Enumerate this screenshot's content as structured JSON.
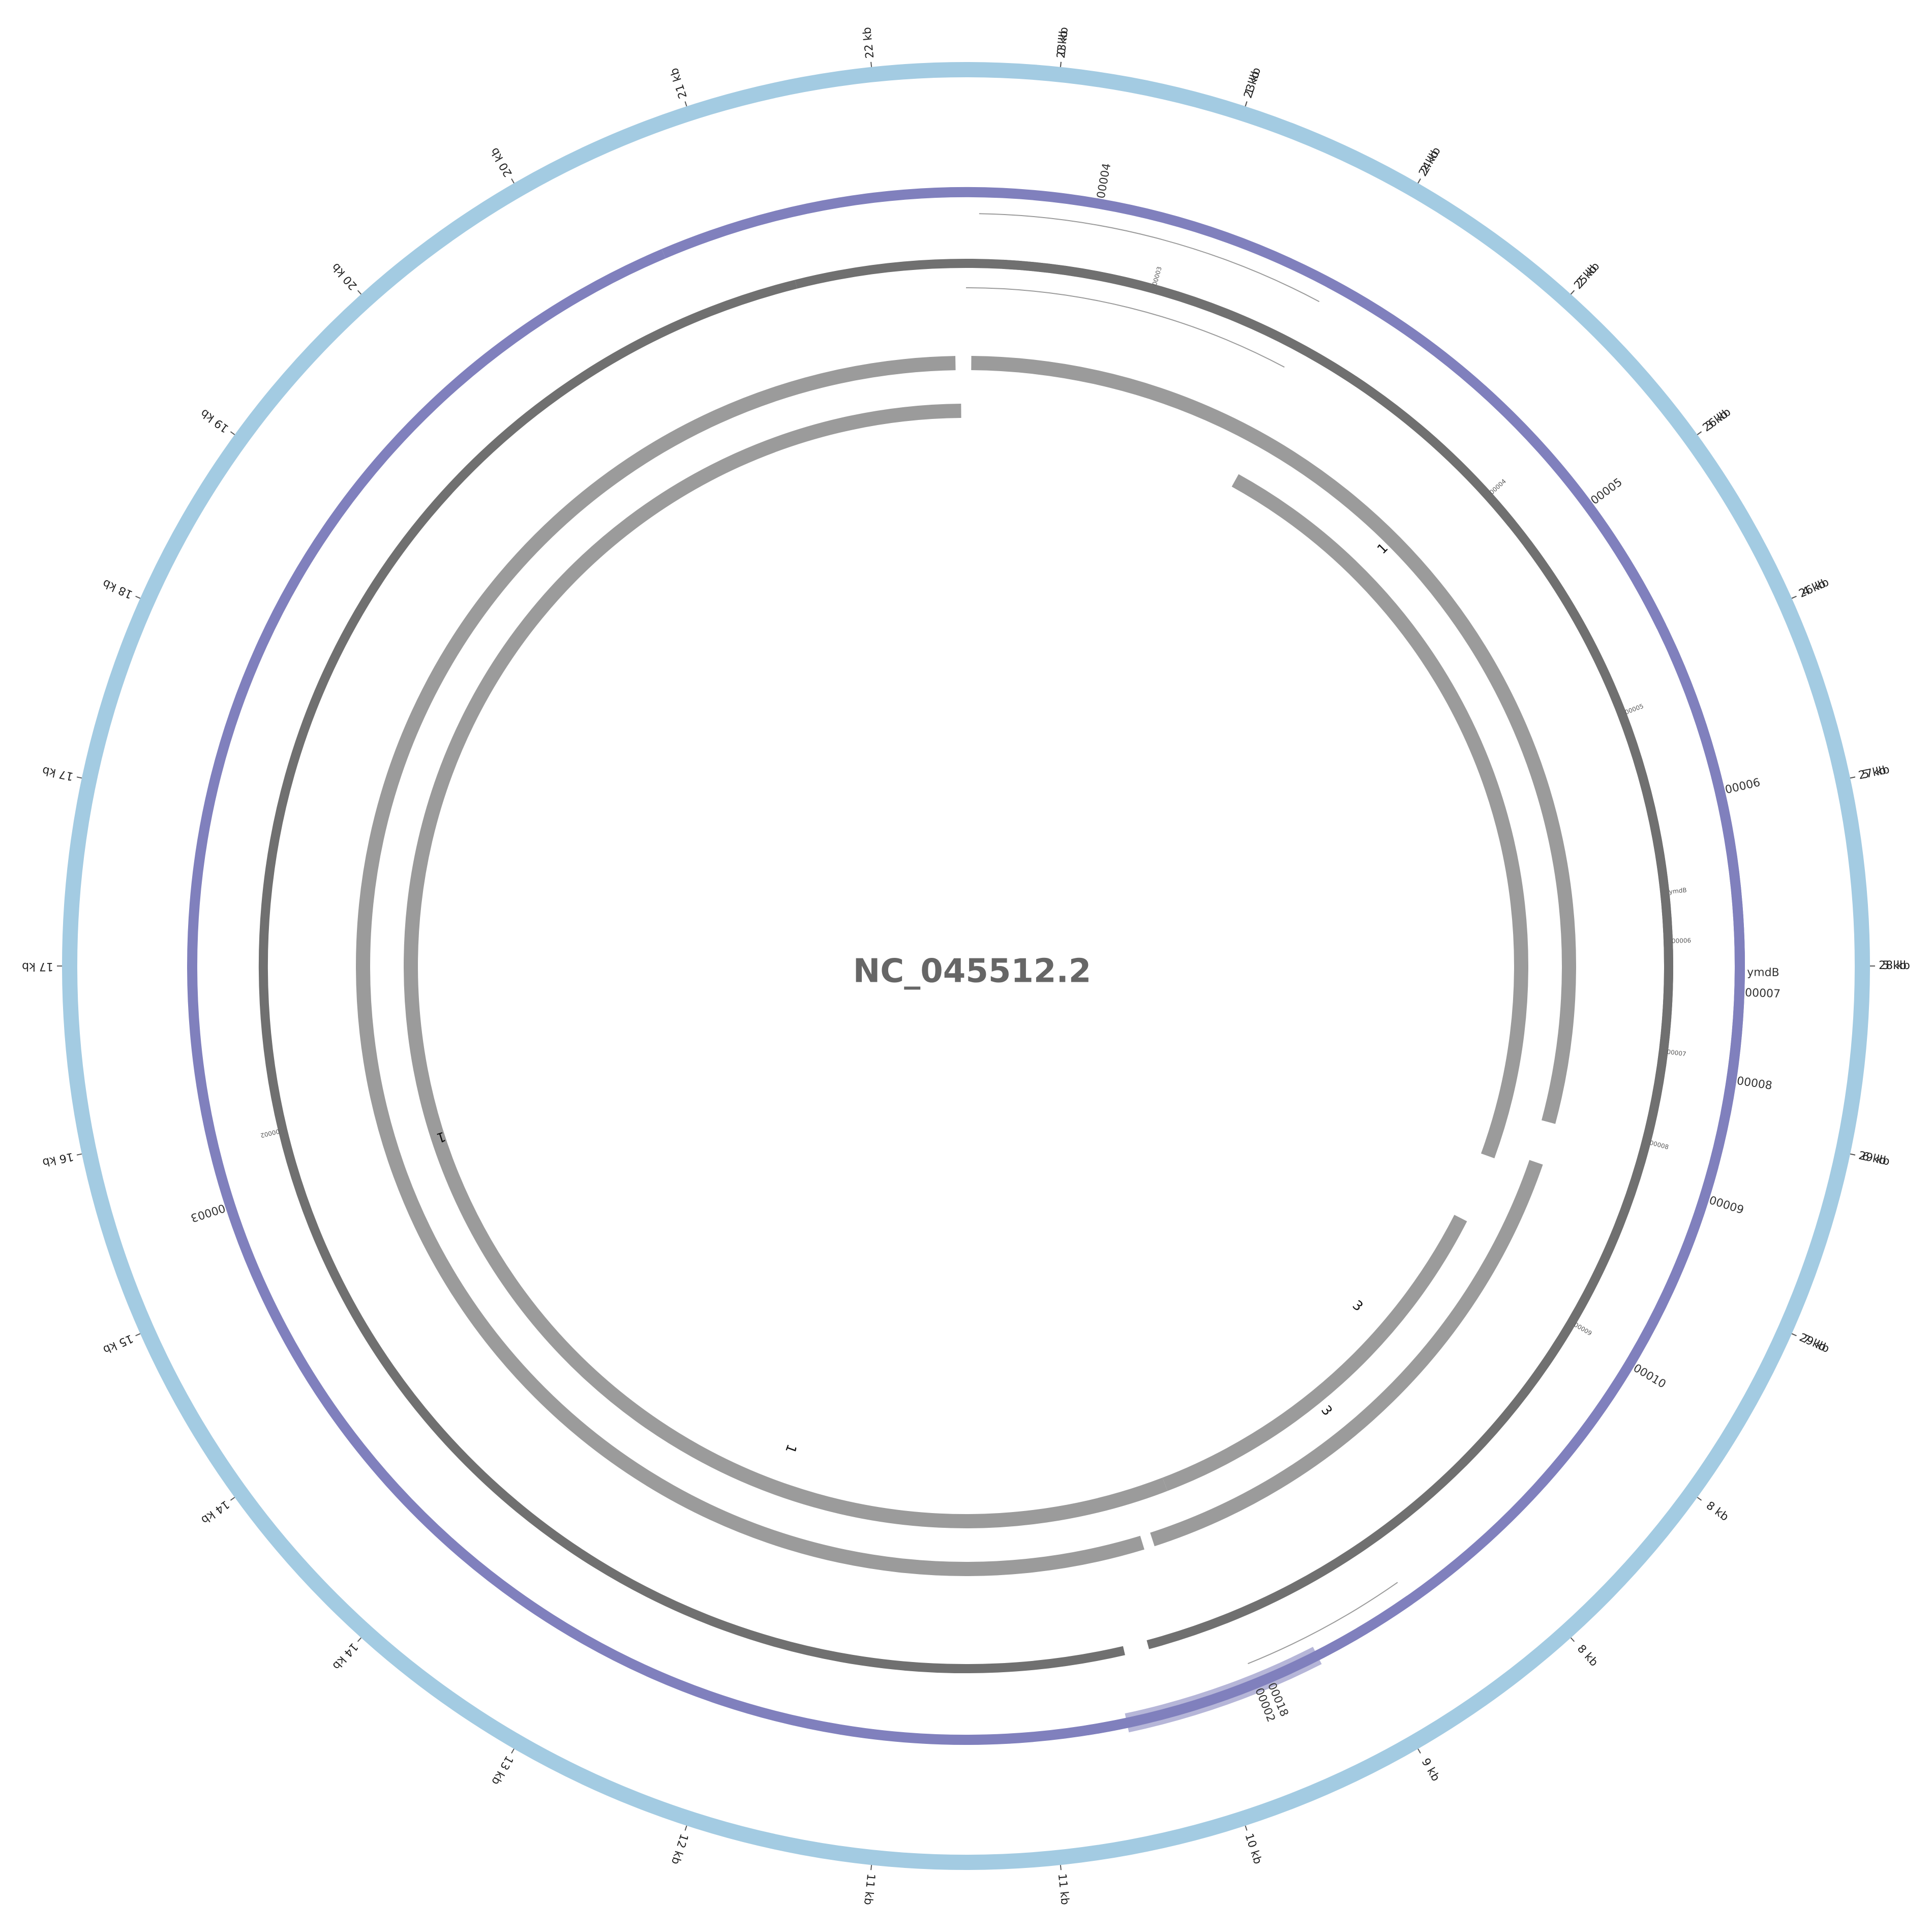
{
  "title": "NC_045512.2",
  "colors": {
    "ruler": "#a3cbe2",
    "gene": "#8080bd",
    "gene_highlight": "#b6b6d8",
    "track2": "#707070",
    "track3": "#9b9b9b",
    "connector": "#9a9a9a",
    "tick": "#555555"
  },
  "ruler_ticks": [
    {
      "label": "0 kb",
      "angle": 6
    },
    {
      "label": "1 kb",
      "angle": 18
    },
    {
      "label": "2 kb",
      "angle": 30
    },
    {
      "label": "2 kb",
      "angle": 42
    },
    {
      "label": "3 kb",
      "angle": 54
    },
    {
      "label": "4 kb",
      "angle": 66
    },
    {
      "label": "5 kb",
      "angle": 78
    },
    {
      "label": "5 kb",
      "angle": 90
    },
    {
      "label": "6 kb",
      "angle": 102
    },
    {
      "label": "7 kb",
      "angle": 114
    },
    {
      "label": "8 kb",
      "angle": 126
    },
    {
      "label": "8 kb",
      "angle": 138
    },
    {
      "label": "9 kb",
      "angle": 150
    },
    {
      "label": "10 kb",
      "angle": 162
    },
    {
      "label": "11 kb",
      "angle": 174
    },
    {
      "label": "11 kb",
      "angle": 186
    },
    {
      "label": "12 kb",
      "angle": 198
    },
    {
      "label": "13 kb",
      "angle": 210
    },
    {
      "label": "14 kb",
      "angle": 222
    },
    {
      "label": "14 kb",
      "angle": 234
    },
    {
      "label": "15 kb",
      "angle": 246
    },
    {
      "label": "16 kb",
      "angle": 258
    },
    {
      "label": "17 kb",
      "angle": 270
    },
    {
      "label": "17 kb",
      "angle": 282
    },
    {
      "label": "18 kb",
      "angle": 294
    },
    {
      "label": "19 kb",
      "angle": 306
    },
    {
      "label": "20 kb",
      "angle": 318
    },
    {
      "label": "20 kb",
      "angle": 330
    },
    {
      "label": "21 kb",
      "angle": 342
    },
    {
      "label": "22 kb",
      "angle": 354
    },
    {
      "label": "23 kb",
      "angle": 366
    },
    {
      "label": "23 kb",
      "angle": 378
    },
    {
      "label": "24 kb",
      "angle": 390
    },
    {
      "label": "25 kb",
      "angle": 402
    },
    {
      "label": "26 kb",
      "angle": 414
    },
    {
      "label": "26 kb",
      "angle": 426
    },
    {
      "label": "27 kb",
      "angle": 438
    },
    {
      "label": "28 kb",
      "angle": 450
    },
    {
      "label": "29 kb",
      "angle": 462
    },
    {
      "label": "29 kb",
      "angle": 474
    }
  ],
  "genes": [
    {
      "label": "ymdB",
      "start": 28,
      "end": 153
    },
    {
      "label": "00018",
      "start": 153,
      "end": 168,
      "highlight": true
    },
    {
      "label": "00002",
      "start": 145,
      "end": 171
    },
    {
      "label": "00003",
      "start": 167,
      "end": 337
    },
    {
      "label": "00004",
      "start": 337,
      "end": 403
    },
    {
      "label": "00005",
      "start": 403,
      "end": 424
    },
    {
      "label": "00006",
      "start": 426,
      "end": 448
    },
    {
      "label": "00007",
      "start": 448,
      "end": 456
    },
    {
      "label": "00008",
      "start": 456,
      "end": 461
    },
    {
      "label": "00009",
      "start": 465,
      "end": 470
    },
    {
      "label": "00010",
      "start": 470,
      "end": 492
    }
  ],
  "track2_features": [
    {
      "label": "ymdB",
      "start": 3,
      "end": 165
    },
    {
      "label": "00002",
      "start": 167,
      "end": 346
    },
    {
      "label": "00003",
      "start": 346,
      "end": 405
    },
    {
      "label": "00004",
      "start": 405,
      "end": 411
    },
    {
      "label": "00005",
      "start": 413,
      "end": 445
    },
    {
      "label": "00006",
      "start": 445,
      "end": 451
    },
    {
      "label": "00007",
      "start": 451,
      "end": 463
    },
    {
      "label": "00008",
      "start": 463,
      "end": 466
    },
    {
      "label": "00009",
      "start": 466,
      "end": 495
    }
  ],
  "track3_arcs": [
    {
      "radius": 1186,
      "start": 0.5,
      "end": 105
    },
    {
      "radius": 1186,
      "start": 109,
      "end": 162
    },
    {
      "radius": 1186,
      "start": 163,
      "end": 359
    },
    {
      "radius": 1092,
      "start": 29,
      "end": 110
    },
    {
      "radius": 1092,
      "start": 117,
      "end": 159
    },
    {
      "radius": 1092,
      "start": 159,
      "end": 359.5
    }
  ],
  "hit_labels": [
    {
      "text": "1",
      "angle": 45,
      "radius": 1160
    },
    {
      "text": "3",
      "angle": 141,
      "radius": 1126
    },
    {
      "text": "3",
      "angle": 131,
      "radius": 1020
    },
    {
      "text": "1",
      "angle": 200,
      "radius": 1010
    },
    {
      "text": "1",
      "angle": 252,
      "radius": 1086
    }
  ]
}
